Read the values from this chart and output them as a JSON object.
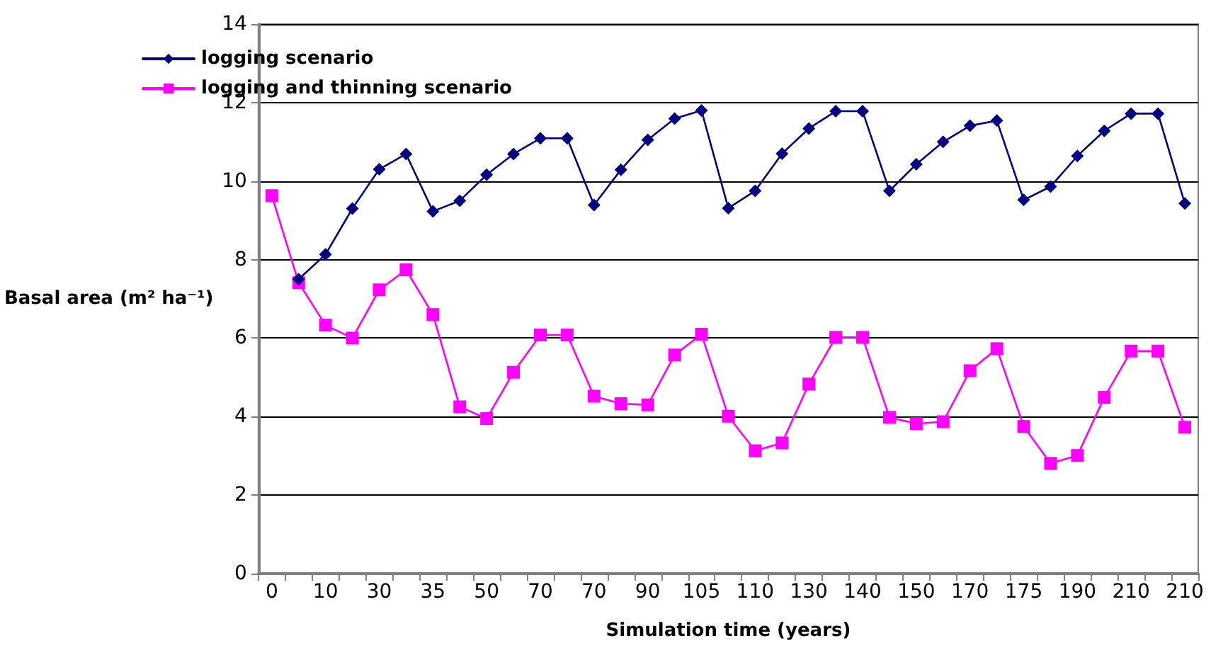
{
  "chart_data": {
    "type": "line",
    "xlabel": "Simulation time (years)",
    "ylabel": "Basal area (m² ha⁻¹)",
    "categories": [
      "0",
      null,
      "10",
      null,
      "30",
      null,
      "35",
      null,
      "50",
      null,
      "70",
      null,
      "70",
      null,
      "90",
      null,
      "105",
      null,
      "110",
      null,
      "130",
      null,
      "140",
      null,
      "150",
      null,
      "170",
      null,
      "175",
      null,
      "190",
      null,
      "210",
      null,
      "210"
    ],
    "series": [
      {
        "name": "logging scenario",
        "color": "#000080",
        "marker": "diamond",
        "values": [
          null,
          7.5,
          8.13,
          9.3,
          10.3,
          10.69,
          9.23,
          9.5,
          10.16,
          10.69,
          11.09,
          11.09,
          9.39,
          10.29,
          11.05,
          11.59,
          11.8,
          9.31,
          9.75,
          10.7,
          11.34,
          11.78,
          11.78,
          9.75,
          10.43,
          11.0,
          11.41,
          11.54,
          9.52,
          9.86,
          10.64,
          11.28,
          11.72,
          11.72,
          9.43
        ]
      },
      {
        "name": "logging and thinning scenario",
        "color": "#ff00ff",
        "marker": "square",
        "values": [
          9.63,
          7.41,
          6.33,
          6.0,
          7.23,
          7.74,
          6.6,
          4.25,
          3.95,
          5.13,
          6.08,
          6.08,
          4.52,
          4.33,
          4.3,
          5.57,
          6.1,
          4.01,
          3.13,
          3.33,
          4.83,
          6.02,
          6.02,
          3.98,
          3.82,
          3.87,
          5.17,
          5.73,
          3.75,
          2.81,
          3.01,
          4.49,
          5.67,
          5.67,
          3.73
        ]
      }
    ],
    "ylim": [
      0,
      14
    ],
    "yticks": [
      0,
      2,
      4,
      6,
      8,
      10,
      12,
      14
    ],
    "grid": "y",
    "legend": "top left",
    "line_style": "solid"
  }
}
